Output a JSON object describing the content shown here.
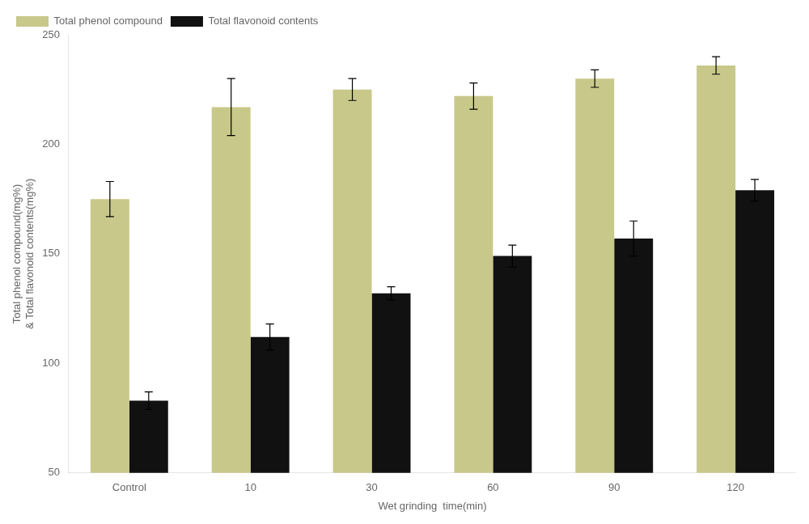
{
  "chart_data": {
    "type": "bar",
    "xlabel": "Wet grinding  time(min)",
    "ylabel": "Total phenol compound(mg%)\n& Total flavonoid contents(mg%)",
    "categories": [
      "Control",
      "10",
      "30",
      "60",
      "90",
      "120"
    ],
    "series": [
      {
        "name": "Total phenol compound",
        "color": "#C8C88A",
        "values": [
          175,
          217,
          225,
          222,
          230,
          236
        ],
        "errors": [
          8,
          13,
          5,
          6,
          4,
          4
        ]
      },
      {
        "name": "Total flavonoid contents",
        "color": "#111111",
        "values": [
          83,
          112,
          132,
          149,
          157,
          179
        ],
        "errors": [
          4,
          6,
          3,
          5,
          8,
          5
        ]
      }
    ],
    "ylim": [
      50,
      250
    ],
    "yticks": [
      50,
      100,
      150,
      200,
      250
    ],
    "grid": false,
    "legend": "upper left"
  }
}
